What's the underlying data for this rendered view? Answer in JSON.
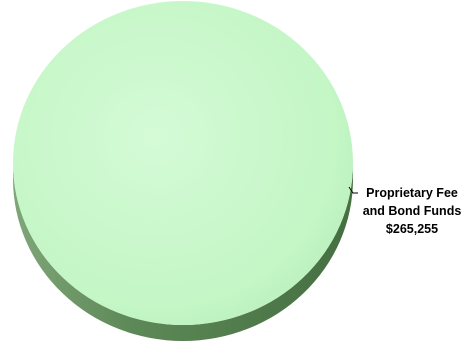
{
  "chart_data": {
    "type": "pie",
    "style": "3d",
    "title": "",
    "slices": [
      {
        "label_lines": [
          "Proprietary Fee",
          "and Bond Funds",
          "$265,255"
        ],
        "value": 265255,
        "color": "#c7f7c9",
        "side_color": "#5f8a5a"
      }
    ],
    "legend": "none"
  }
}
